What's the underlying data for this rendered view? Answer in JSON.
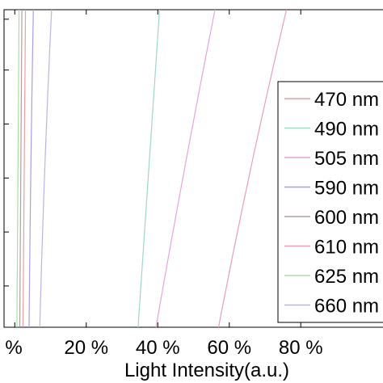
{
  "chart_data": {
    "type": "line",
    "title": "",
    "xlabel": "Light Intensity(a.u.)",
    "ylabel": "",
    "x_unit": "%",
    "xlim": [
      -3,
      103
    ],
    "ylim": [
      0,
      1
    ],
    "x_ticks": [
      {
        "value": 0,
        "label": "%"
      },
      {
        "value": 20,
        "label": "20 %"
      },
      {
        "value": 40,
        "label": "40 %"
      },
      {
        "value": 60,
        "label": "60 %"
      },
      {
        "value": 80,
        "label": "80 %"
      }
    ],
    "y_ticks": [
      0.13,
      0.3,
      0.47,
      0.64,
      0.81,
      0.97
    ],
    "grid": false,
    "legend_position": "right",
    "series": [
      {
        "name": "470 nm",
        "color": "#e8a0a0",
        "points": [
          [
            2.3,
            0
          ],
          [
            2.6,
            0.5
          ],
          [
            3.0,
            1
          ]
        ]
      },
      {
        "name": "490 nm",
        "color": "#9fd8c6",
        "points": [
          [
            34.5,
            0
          ],
          [
            37.5,
            0.5
          ],
          [
            40.5,
            1
          ]
        ]
      },
      {
        "name": "505 nm",
        "color": "#e6a4df",
        "points": [
          [
            39.5,
            0
          ],
          [
            47.5,
            0.5
          ],
          [
            56.0,
            1
          ]
        ]
      },
      {
        "name": "590 nm",
        "color": "#a6a0e6",
        "points": [
          [
            4.0,
            0
          ],
          [
            4.5,
            0.5
          ],
          [
            5.2,
            1
          ]
        ]
      },
      {
        "name": "600 nm",
        "color": "#b0a0a0",
        "points": [
          [
            1.4,
            0
          ],
          [
            1.7,
            0.5
          ],
          [
            2.0,
            1
          ]
        ]
      },
      {
        "name": "610 nm",
        "color": "#e8a0b8",
        "points": [
          [
            57.0,
            0
          ],
          [
            66.0,
            0.5
          ],
          [
            76.0,
            1
          ]
        ]
      },
      {
        "name": "625 nm",
        "color": "#a8e0a0",
        "points": [
          [
            0.6,
            0
          ],
          [
            0.9,
            0.5
          ],
          [
            1.2,
            1
          ]
        ]
      },
      {
        "name": "660 nm",
        "color": "#c0b0e8",
        "points": [
          [
            7.0,
            0
          ],
          [
            8.4,
            0.5
          ],
          [
            10.3,
            1
          ]
        ]
      }
    ]
  }
}
